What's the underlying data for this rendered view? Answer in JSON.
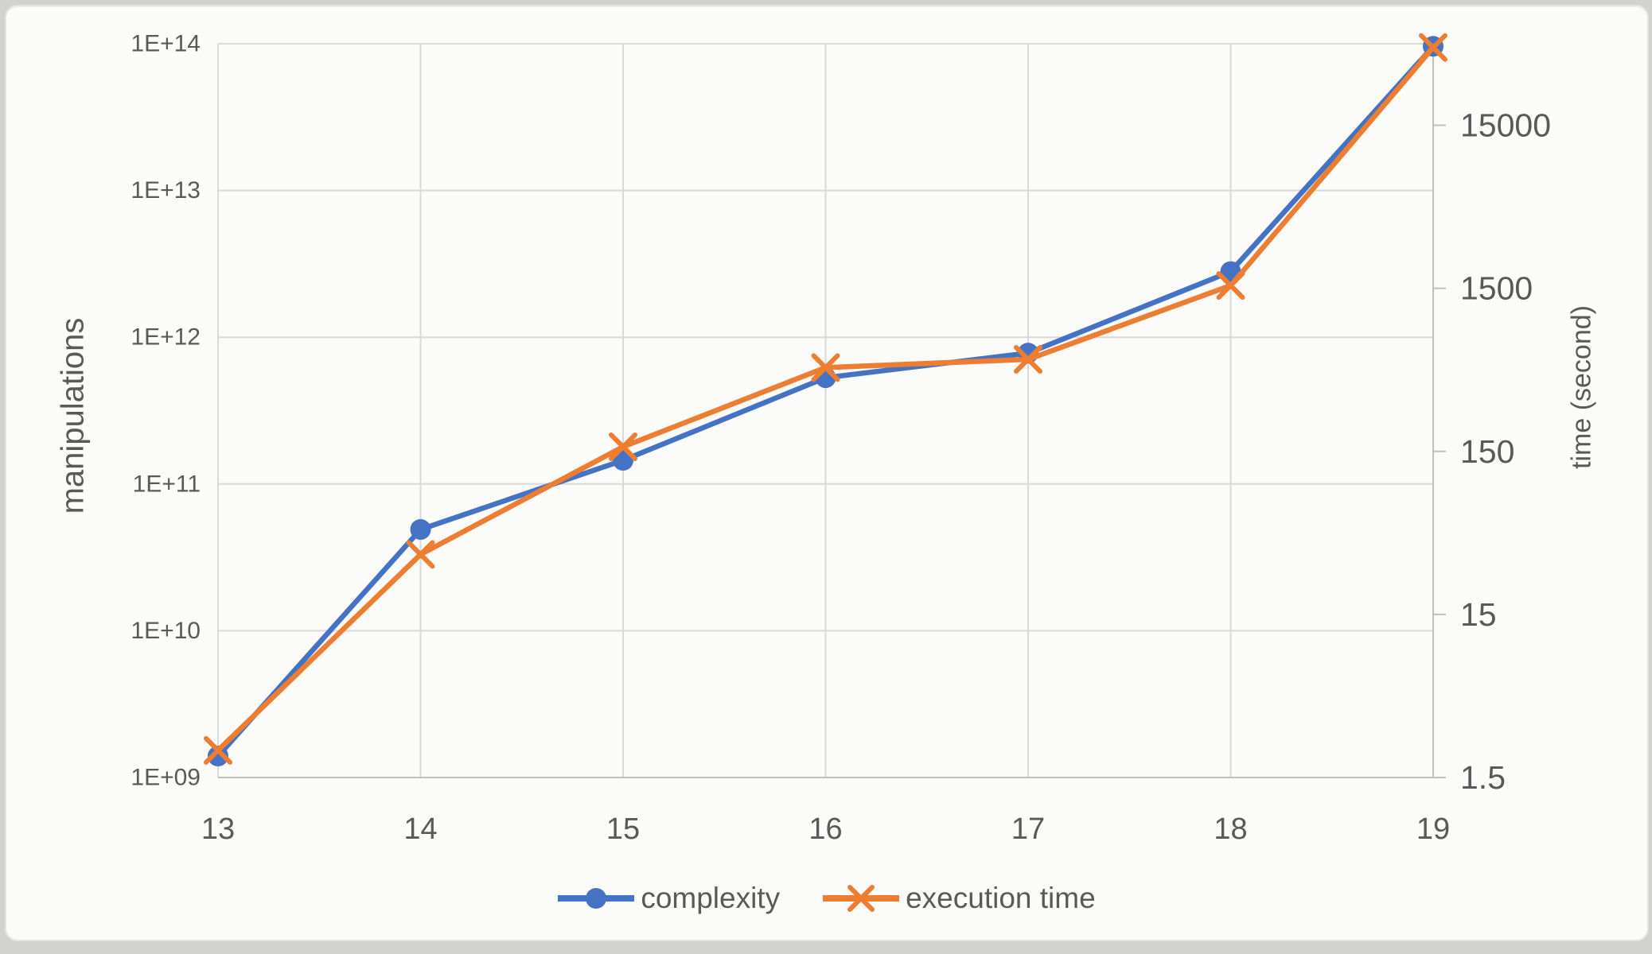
{
  "frame": {
    "card_background": "#FBFBF9",
    "outer_background": "#D2D2D0"
  },
  "colors": {
    "grid": "#D9D9D9",
    "axis_line": "#BFBFBF",
    "text": "#595959"
  },
  "chart_data": {
    "type": "line",
    "title": "",
    "x": [
      13,
      14,
      15,
      16,
      17,
      18,
      19
    ],
    "x_axis": {
      "tick_labels": [
        "13",
        "14",
        "15",
        "16",
        "17",
        "18",
        "19"
      ],
      "range": [
        13,
        19
      ]
    },
    "left_axis": {
      "title": "manipulations",
      "scale": "log",
      "range": [
        1000000000.0,
        100000000000000.0
      ],
      "tick_values": [
        1000000000.0,
        10000000000.0,
        100000000000.0,
        1000000000000.0,
        10000000000000.0,
        100000000000000.0
      ],
      "tick_labels": [
        "1E+09",
        "1E+10",
        "1E+11",
        "1E+12",
        "1E+13",
        "1E+14"
      ]
    },
    "right_axis": {
      "title": "time (second)",
      "scale": "log",
      "min": 1.5,
      "decades_span": 4.5,
      "tick_values": [
        1.5,
        15,
        150,
        1500,
        15000
      ],
      "tick_labels": [
        "1.5",
        "15",
        "150",
        "1500",
        "15000"
      ]
    },
    "grid": true,
    "legend_position": "bottom",
    "series": [
      {
        "name": "complexity",
        "yaxis": "left",
        "color": "#4472C4",
        "marker": "circle",
        "values": [
          1400000000.0,
          49000000000.0,
          145000000000.0,
          530000000000.0,
          780000000000.0,
          2800000000000.0,
          96000000000000.0
        ]
      },
      {
        "name": "execution time",
        "yaxis": "right",
        "color": "#ED7D31",
        "marker": "x",
        "values": [
          2.2,
          35,
          160,
          490,
          550,
          1560,
          45000
        ]
      }
    ]
  }
}
